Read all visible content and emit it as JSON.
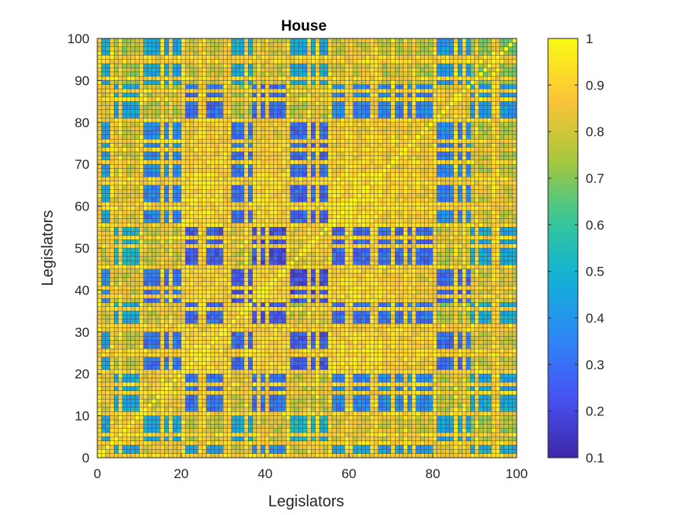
{
  "chart_data": {
    "type": "heatmap",
    "title": "House",
    "xlabel": "Legislators",
    "ylabel": "Legislators",
    "xlim": [
      0,
      100
    ],
    "ylim": [
      0,
      100
    ],
    "x_ticks": [
      "0",
      "20",
      "40",
      "60",
      "80",
      "100"
    ],
    "y_ticks": [
      "0",
      "10",
      "20",
      "30",
      "40",
      "50",
      "60",
      "70",
      "80",
      "90",
      "100"
    ],
    "colorbar": {
      "colormap": "parula",
      "range": [
        0.1,
        1
      ],
      "ticks": [
        "0.1",
        "0.2",
        "0.3",
        "0.4",
        "0.5",
        "0.6",
        "0.7",
        "0.8",
        "0.9",
        "1"
      ]
    },
    "matrix_size": 100,
    "diagonal_value": 1,
    "block_boundaries": [
      0,
      3,
      11,
      20,
      30,
      37,
      45,
      55,
      68,
      80,
      89,
      100
    ],
    "block_level_matrix": [
      [
        0.88,
        0.45,
        0.82,
        0.42,
        0.78,
        0.4,
        0.8,
        0.45,
        0.42,
        0.8,
        0.5
      ],
      [
        0.45,
        0.86,
        0.48,
        0.78,
        0.46,
        0.8,
        0.52,
        0.82,
        0.8,
        0.45,
        0.74
      ],
      [
        0.82,
        0.48,
        0.84,
        0.32,
        0.8,
        0.3,
        0.78,
        0.35,
        0.38,
        0.76,
        0.46
      ],
      [
        0.42,
        0.78,
        0.32,
        0.92,
        0.28,
        0.9,
        0.25,
        0.92,
        0.88,
        0.3,
        0.78
      ],
      [
        0.78,
        0.46,
        0.8,
        0.28,
        0.82,
        0.25,
        0.8,
        0.3,
        0.32,
        0.74,
        0.48
      ],
      [
        0.4,
        0.8,
        0.3,
        0.9,
        0.25,
        0.9,
        0.22,
        0.9,
        0.86,
        0.28,
        0.8
      ],
      [
        0.8,
        0.52,
        0.78,
        0.25,
        0.8,
        0.22,
        0.84,
        0.28,
        0.3,
        0.78,
        0.45
      ],
      [
        0.45,
        0.82,
        0.35,
        0.92,
        0.3,
        0.9,
        0.28,
        0.93,
        0.88,
        0.35,
        0.8
      ],
      [
        0.42,
        0.8,
        0.38,
        0.88,
        0.32,
        0.86,
        0.3,
        0.88,
        0.85,
        0.36,
        0.76
      ],
      [
        0.8,
        0.45,
        0.76,
        0.3,
        0.74,
        0.28,
        0.78,
        0.35,
        0.36,
        0.82,
        0.42
      ],
      [
        0.5,
        0.74,
        0.46,
        0.78,
        0.48,
        0.8,
        0.45,
        0.8,
        0.76,
        0.42,
        0.7
      ]
    ]
  }
}
